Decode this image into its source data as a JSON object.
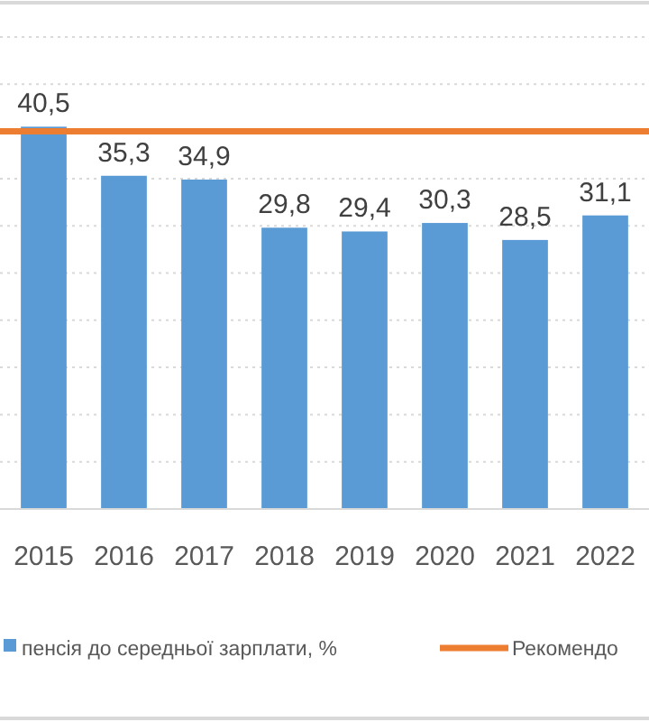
{
  "chart_data": {
    "type": "bar",
    "categories": [
      "2015",
      "2016",
      "2017",
      "2018",
      "2019",
      "2020",
      "2021",
      "2022"
    ],
    "series": [
      {
        "name": "пенсія до середньої зарплати, %",
        "color": "#5b9bd5",
        "values": [
          40.5,
          35.3,
          34.9,
          29.8,
          29.4,
          30.3,
          28.5,
          31.1
        ],
        "value_labels": [
          "40,5",
          "35,3",
          "34,9",
          "29,8",
          "29,4",
          "30,3",
          "28,5",
          "31,1"
        ]
      }
    ],
    "ref_lines": [
      {
        "axis": "y",
        "value": 40,
        "label": "Рекомендо",
        "color": "#ed7d31"
      }
    ],
    "ylim": [
      0,
      50
    ],
    "yticks": [
      {
        "value": 0,
        "label": null
      },
      {
        "value": 5,
        "label": null
      },
      {
        "value": 10,
        "label": null
      },
      {
        "value": 15,
        "label": null
      },
      {
        "value": 20,
        "label": null
      },
      {
        "value": 25,
        "label": null
      },
      {
        "value": 30,
        "label": null
      },
      {
        "value": 35,
        "label": null
      },
      {
        "value": 40,
        "label": null
      },
      {
        "value": 45,
        "label": null
      },
      {
        "value": 50,
        "label": null
      }
    ],
    "grid": "y",
    "tick_labels": "x",
    "legend": "bottom"
  }
}
